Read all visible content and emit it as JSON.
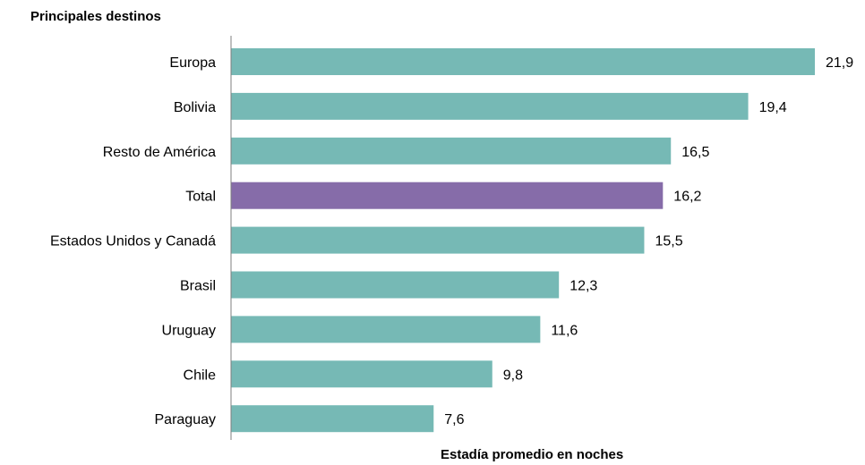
{
  "chart_data": {
    "type": "bar",
    "orientation": "horizontal",
    "ylabel": "Principales destinos",
    "xlabel": "Estadía promedio en noches",
    "categories": [
      "Europa",
      "Bolivia",
      "Resto de América",
      "Total",
      "Estados Unidos y Canadá",
      "Brasil",
      "Uruguay",
      "Chile",
      "Paraguay"
    ],
    "values": [
      21.9,
      19.4,
      16.5,
      16.2,
      15.5,
      12.3,
      11.6,
      9.8,
      7.6
    ],
    "value_labels": [
      "21,9",
      "19,4",
      "16,5",
      "16,2",
      "15,5",
      "12,3",
      "11,6",
      "9,8",
      "7,6"
    ],
    "highlight_category": "Total",
    "colors": {
      "bar": "#76b9b5",
      "highlight": "#866ca9",
      "axis": "#7f7f7f"
    },
    "xlim": [
      0,
      21.9
    ],
    "grid": false,
    "legend": "none"
  }
}
